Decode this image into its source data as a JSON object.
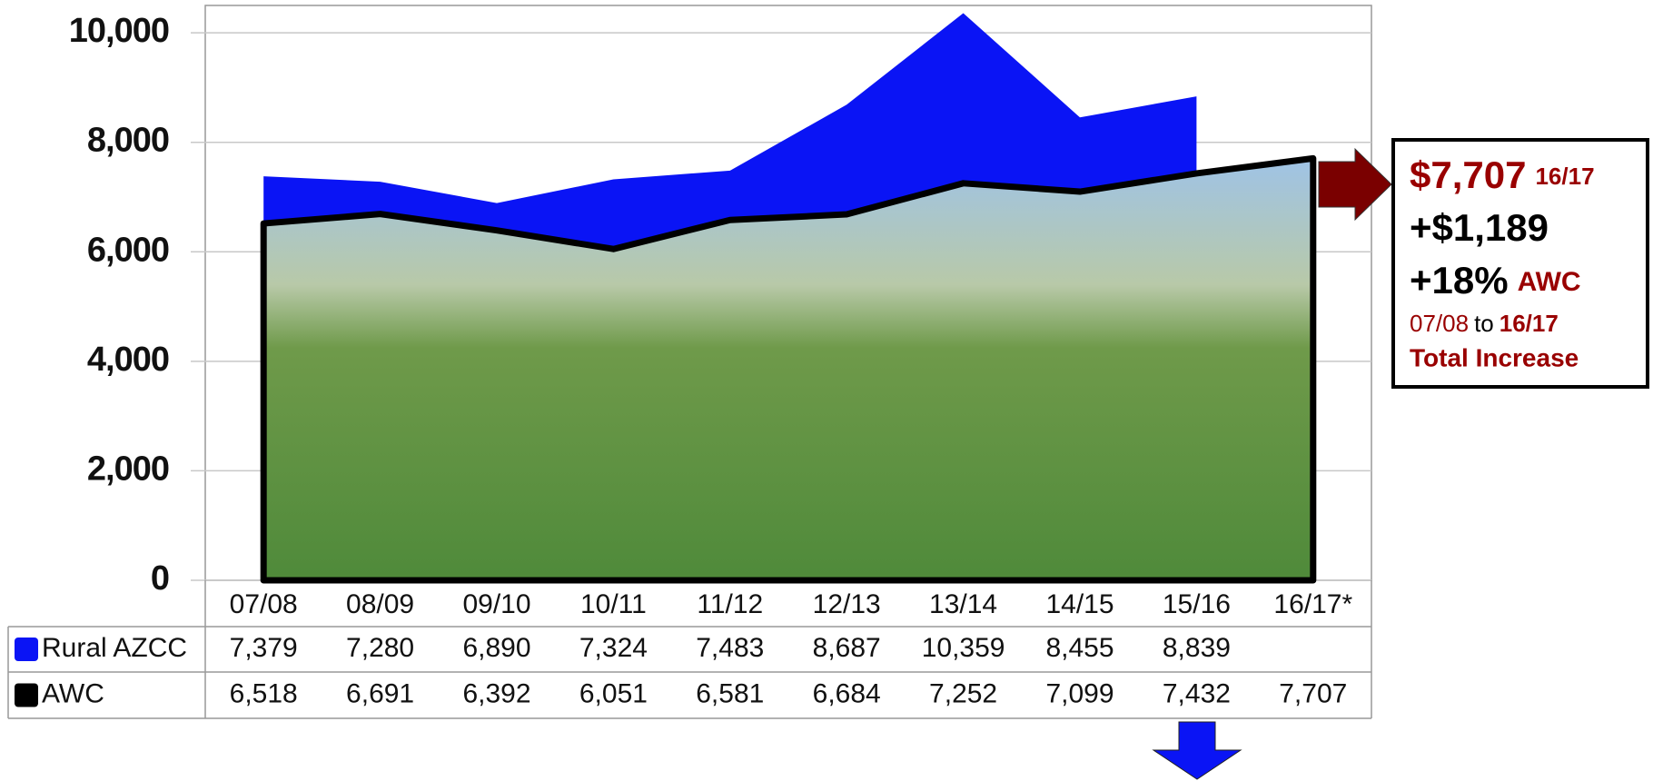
{
  "chart_data": {
    "type": "area",
    "categories": [
      "07/08",
      "08/09",
      "09/10",
      "10/11",
      "11/12",
      "12/13",
      "13/14",
      "14/15",
      "15/16",
      "16/17*"
    ],
    "series": [
      {
        "name": "Rural AZCC",
        "color": "#0a14f5",
        "values": [
          7379,
          7280,
          6890,
          7324,
          7483,
          8687,
          10359,
          8455,
          8839,
          null
        ],
        "value_labels": [
          "7,379",
          "7,280",
          "6,890",
          "7,324",
          "7,483",
          "8,687",
          "10,359",
          "8,455",
          "8,839",
          null
        ]
      },
      {
        "name": "AWC",
        "color": "#000000",
        "values": [
          6518,
          6691,
          6392,
          6051,
          6581,
          6684,
          7252,
          7099,
          7432,
          7707
        ],
        "value_labels": [
          "6,518",
          "6,691",
          "6,392",
          "6,051",
          "6,581",
          "6,684",
          "7,252",
          "7,099",
          "7,432",
          "7,707"
        ]
      }
    ],
    "ylim": [
      0,
      10500
    ],
    "yticks": [
      0,
      {
        "value": 2000,
        "label": "2,000"
      },
      {
        "value": 4000,
        "label": "4,000"
      },
      {
        "value": 6000,
        "label": "6,000"
      },
      {
        "value": 8000,
        "label": "8,000"
      },
      {
        "value": 10000,
        "label": "10,000"
      }
    ],
    "grid": true,
    "annotation": {
      "lines": [
        [
          "$7,707",
          "16/17"
        ],
        [
          "+$1,189"
        ],
        [
          "+18%",
          "AWC"
        ],
        [
          "07/08",
          "to",
          "16/17"
        ],
        [
          "Total Increase"
        ]
      ]
    }
  }
}
